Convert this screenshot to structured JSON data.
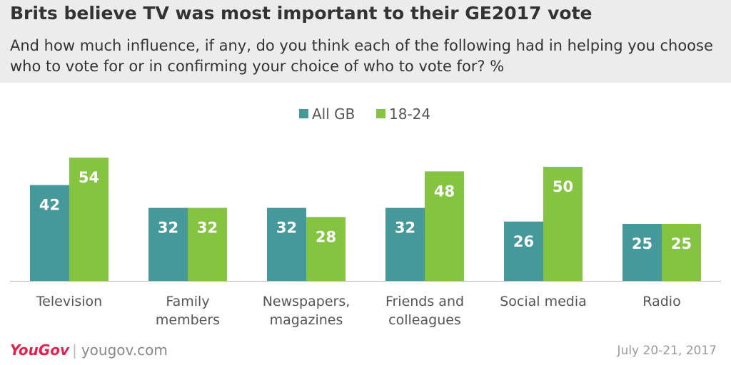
{
  "header": {
    "title": "Brits believe TV was most important to their GE2017 vote",
    "subtitle": "And how much influence, if any, do you think each of the following had in helping you choose who to vote for or in confirming your choice of who to vote for? %"
  },
  "footer": {
    "logo_text": "YouGov",
    "separator": "|",
    "site": "yougov.com",
    "date": "July 20-21, 2017"
  },
  "colors": {
    "header_bg": "#ececec",
    "all_gb": "#45999b",
    "age_18_24": "#84c441",
    "logo": "#e3204e"
  },
  "chart_data": {
    "type": "bar",
    "title": "Brits believe TV was most important to their GE2017 vote",
    "xlabel": "",
    "ylabel": "",
    "ylim": [
      0,
      60
    ],
    "grid": false,
    "legend_position": "top-center",
    "categories": [
      [
        "Television"
      ],
      [
        "Family",
        "members"
      ],
      [
        "Newspapers,",
        "magazines"
      ],
      [
        "Friends and",
        "colleagues"
      ],
      [
        "Social media"
      ],
      [
        "Radio"
      ]
    ],
    "series": [
      {
        "name": "All GB",
        "color": "#45999b",
        "values": [
          42,
          32,
          32,
          32,
          26,
          25
        ]
      },
      {
        "name": "18-24",
        "color": "#84c441",
        "values": [
          54,
          32,
          28,
          48,
          50,
          25
        ]
      }
    ]
  }
}
